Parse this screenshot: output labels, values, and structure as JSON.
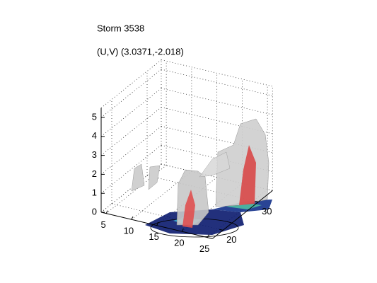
{
  "chart_data": {
    "type": "surface3d",
    "title": "Storm 3538",
    "subtitle": "(U,V) (3.0371,-2.018)",
    "xlim": [
      4,
      26
    ],
    "ylim": [
      17,
      34
    ],
    "zlim": [
      0,
      5.5
    ],
    "xticks": [
      5,
      10,
      15,
      20,
      25
    ],
    "yticks": [
      20,
      30
    ],
    "zticks": [
      0,
      1,
      2,
      3,
      4,
      5
    ],
    "grid": true
  }
}
